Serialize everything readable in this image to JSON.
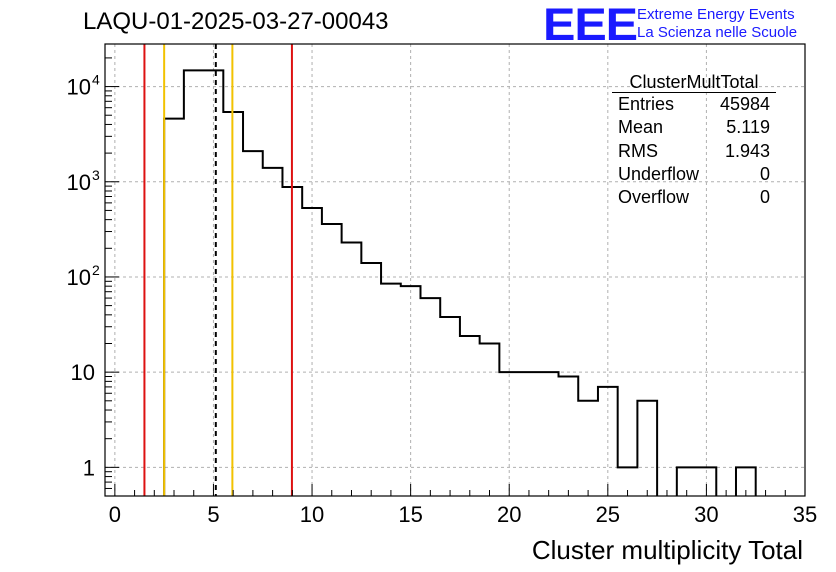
{
  "title": "LAQU-01-2025-03-27-00043",
  "logo": {
    "text": "EEE",
    "line1": "Extreme Energy Events",
    "line2": "La Scienza nelle Scuole",
    "color": "#1a1aff"
  },
  "stats_box": {
    "name": "ClusterMultTotal",
    "rows": [
      {
        "label": "Entries",
        "value": "45984"
      },
      {
        "label": "Mean",
        "value": "5.119"
      },
      {
        "label": "RMS",
        "value": "1.943"
      },
      {
        "label": "Underflow",
        "value": "0"
      },
      {
        "label": "Overflow",
        "value": "0"
      }
    ]
  },
  "chart_data": {
    "type": "histogram",
    "title": "LAQU-01-2025-03-27-00043",
    "xlabel": "Cluster multiplicity Total",
    "ylabel": "",
    "xlim": [
      -0.5,
      35
    ],
    "ylim": [
      0.5,
      28000
    ],
    "yscale": "log",
    "grid": true,
    "x_ticks": [
      "0",
      "5",
      "10",
      "15",
      "20",
      "25",
      "30",
      "35"
    ],
    "y_ticks": [
      {
        "value": 1,
        "label": "1"
      },
      {
        "value": 10,
        "label": "10"
      },
      {
        "value": 100,
        "label": "10",
        "exp": "2"
      },
      {
        "value": 1000,
        "label": "10",
        "exp": "3"
      },
      {
        "value": 10000,
        "label": "10",
        "exp": "4"
      }
    ],
    "bin_width": 1,
    "bins": [
      {
        "low": 2.5,
        "count": 4600
      },
      {
        "low": 3.5,
        "count": 14800
      },
      {
        "low": 4.5,
        "count": 14800
      },
      {
        "low": 5.5,
        "count": 5400
      },
      {
        "low": 6.5,
        "count": 2100
      },
      {
        "low": 7.5,
        "count": 1400
      },
      {
        "low": 8.5,
        "count": 880
      },
      {
        "low": 9.5,
        "count": 530
      },
      {
        "low": 10.5,
        "count": 360
      },
      {
        "low": 11.5,
        "count": 230
      },
      {
        "low": 12.5,
        "count": 140
      },
      {
        "low": 13.5,
        "count": 85
      },
      {
        "low": 14.5,
        "count": 80
      },
      {
        "low": 15.5,
        "count": 60
      },
      {
        "low": 16.5,
        "count": 38
      },
      {
        "low": 17.5,
        "count": 24
      },
      {
        "low": 18.5,
        "count": 20
      },
      {
        "low": 19.5,
        "count": 10
      },
      {
        "low": 20.5,
        "count": 10
      },
      {
        "low": 21.5,
        "count": 10
      },
      {
        "low": 22.5,
        "count": 9
      },
      {
        "low": 23.5,
        "count": 5
      },
      {
        "low": 24.5,
        "count": 7
      },
      {
        "low": 25.5,
        "count": 1
      },
      {
        "low": 26.5,
        "count": 5
      },
      {
        "low": 28.5,
        "count": 1
      },
      {
        "low": 29.5,
        "count": 1
      },
      {
        "low": 31.5,
        "count": 1
      }
    ],
    "vertical_lines": [
      {
        "x": 1.5,
        "color": "#dd1111",
        "style": "solid"
      },
      {
        "x": 2.5,
        "color": "#f2c200",
        "style": "solid"
      },
      {
        "x": 5.119,
        "color": "#000000",
        "style": "dashed"
      },
      {
        "x": 5.96,
        "color": "#f2c200",
        "style": "solid"
      },
      {
        "x": 8.98,
        "color": "#dd1111",
        "style": "solid"
      }
    ]
  }
}
